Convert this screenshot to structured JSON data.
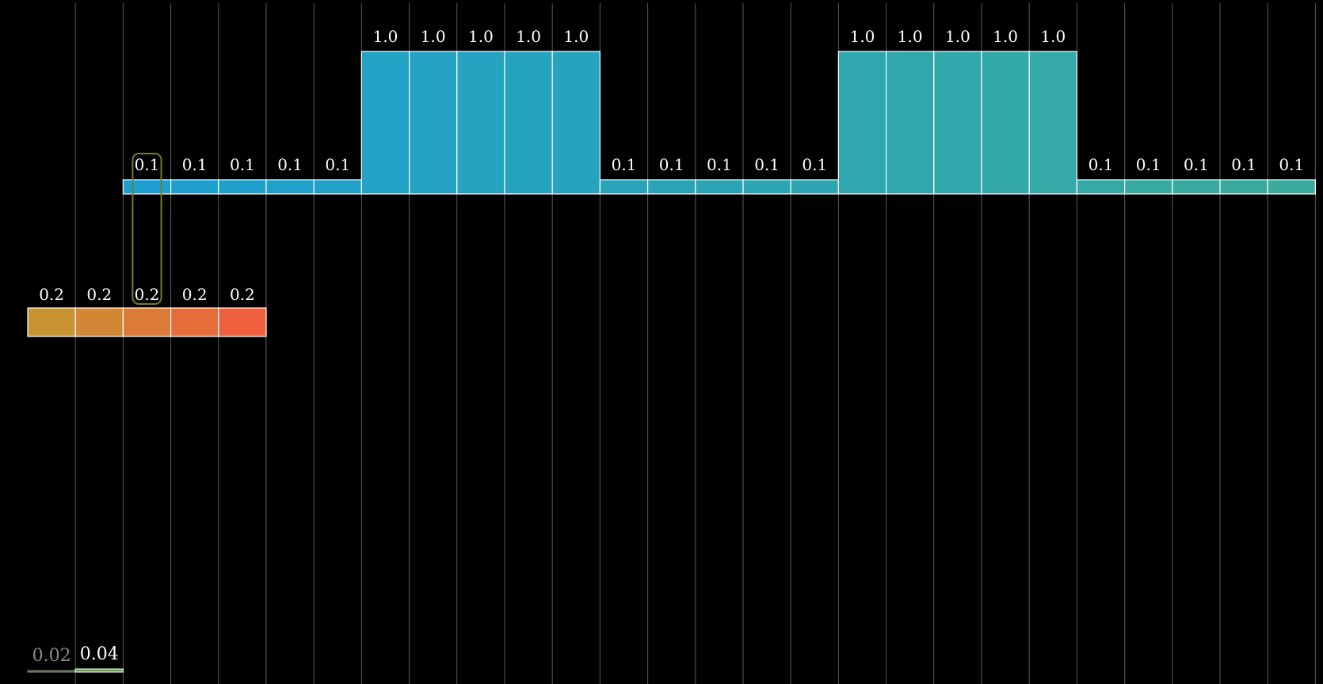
{
  "signal": {
    "start_index": 2,
    "values": [
      0.1,
      0.1,
      0.1,
      0.1,
      0.1,
      1.0,
      1.0,
      1.0,
      1.0,
      1.0,
      0.1,
      0.1,
      0.1,
      0.1,
      0.1,
      1.0,
      1.0,
      1.0,
      1.0,
      1.0,
      0.1,
      0.1,
      0.1,
      0.1,
      0.1
    ],
    "labels": [
      "0.1",
      "0.1",
      "0.1",
      "0.1",
      "0.1",
      "1.0",
      "1.0",
      "1.0",
      "1.0",
      "1.0",
      "0.1",
      "0.1",
      "0.1",
      "0.1",
      "0.1",
      "1.0",
      "1.0",
      "1.0",
      "1.0",
      "1.0",
      "0.1",
      "0.1",
      "0.1",
      "0.1",
      "0.1"
    ],
    "color_start": "#1c9fd0",
    "color_end": "#3aab9c"
  },
  "kernel": {
    "start_index": 0,
    "values": [
      0.2,
      0.2,
      0.2,
      0.2,
      0.2
    ],
    "labels": [
      "0.2",
      "0.2",
      "0.2",
      "0.2",
      "0.2"
    ],
    "color_start": "#c89432",
    "color_end": "#f05f3d"
  },
  "output": {
    "start_index": 0,
    "values": [
      0.02,
      0.04
    ],
    "labels": [
      "0.02",
      "0.04"
    ],
    "color": "#6aa84f",
    "faded_color": "#8a8a8a"
  },
  "highlight": {
    "signal_index": 0,
    "color": "#7a7a2a"
  },
  "grid": {
    "count": 28
  },
  "colors": {
    "background": "#000000",
    "gridline": "#5a5a5a",
    "cell_border": "#ffffff",
    "label": "#ffffff"
  }
}
